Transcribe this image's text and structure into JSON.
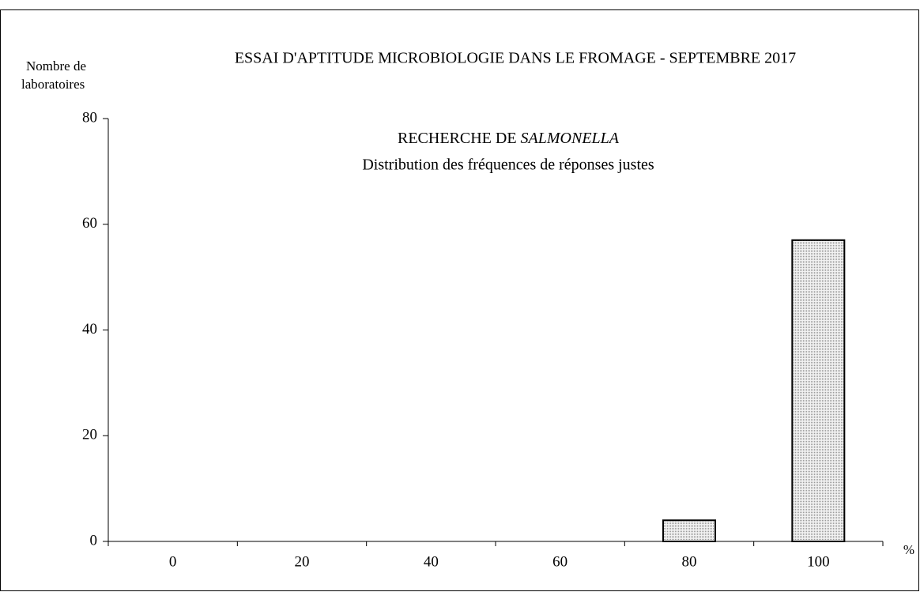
{
  "chart_data": {
    "type": "bar",
    "title": "ESSAI D'APTITUDE MICROBIOLOGIE DANS LE FROMAGE - SEPTEMBRE  2017",
    "subtitle_prefix": "RECHERCHE DE",
    "subtitle_italic": "SALMONELLA",
    "subtitle_line2": "Distribution des fréquences de réponses justes",
    "ylabel": [
      "Nombre de",
      "laboratoires"
    ],
    "xlabel": "%",
    "categories": [
      "0",
      "20",
      "40",
      "60",
      "80",
      "100"
    ],
    "values": [
      0,
      0,
      0,
      0,
      4,
      57
    ],
    "color": "#d9d9d9",
    "ylim": [
      0,
      80
    ],
    "yticks": [
      0,
      20,
      40,
      60,
      80
    ],
    "grid": false
  }
}
